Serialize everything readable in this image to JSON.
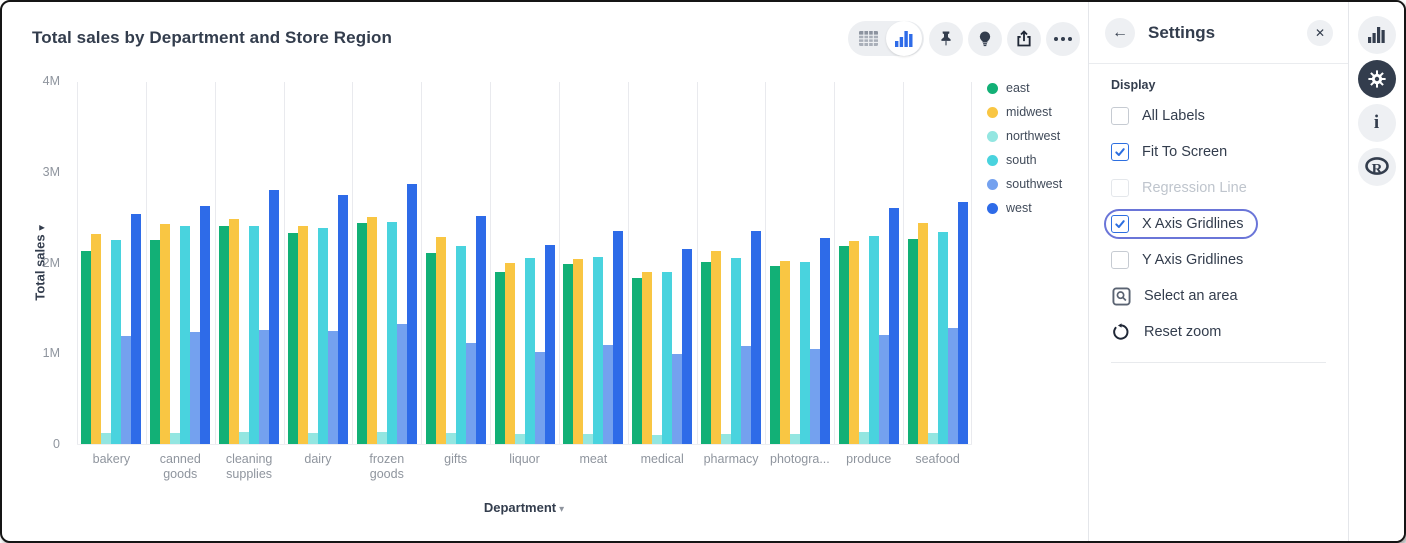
{
  "chart_card": {
    "title": "Total sales by Department and Store Region",
    "toolbar": {
      "view_toggle": {
        "options": [
          "table-view",
          "chart-view"
        ],
        "selected": "chart-view"
      },
      "buttons": [
        "pin",
        "insight-bulb",
        "share",
        "more-options"
      ]
    }
  },
  "chart_data": {
    "type": "bar",
    "title": "Total sales by Department and Store Region",
    "xlabel": "Department",
    "ylabel": "Total sales",
    "value_unit": "millions",
    "ylim": [
      0,
      4
    ],
    "y_ticks": [
      "0",
      "1M",
      "2M",
      "3M",
      "4M"
    ],
    "x_gridlines": true,
    "y_gridlines": false,
    "legend_position": "right",
    "categories": [
      "bakery",
      "canned goods",
      "cleaning supplies",
      "dairy",
      "frozen goods",
      "gifts",
      "liquor",
      "meat",
      "medical",
      "pharmacy",
      "photogra...",
      "produce",
      "seafood"
    ],
    "x_tick_lines": [
      [
        "bakery"
      ],
      [
        "canned",
        "goods"
      ],
      [
        "cleaning",
        "supplies"
      ],
      [
        "dairy"
      ],
      [
        "frozen",
        "goods"
      ],
      [
        "gifts"
      ],
      [
        "liquor"
      ],
      [
        "meat"
      ],
      [
        "medical"
      ],
      [
        "pharmacy"
      ],
      [
        "photogra..."
      ],
      [
        "produce"
      ],
      [
        "seafood"
      ]
    ],
    "series": [
      {
        "name": "east",
        "color": "#12B076",
        "values": [
          2.13,
          2.25,
          2.4,
          2.32,
          2.44,
          2.1,
          1.89,
          1.98,
          1.83,
          2.01,
          1.96,
          2.18,
          2.26
        ]
      },
      {
        "name": "midwest",
        "color": "#F9C643",
        "values": [
          2.31,
          2.42,
          2.48,
          2.4,
          2.5,
          2.28,
          1.99,
          2.04,
          1.9,
          2.13,
          2.02,
          2.24,
          2.43
        ]
      },
      {
        "name": "northwest",
        "color": "#93E6E1",
        "values": [
          0.12,
          0.12,
          0.13,
          0.12,
          0.13,
          0.12,
          0.11,
          0.11,
          0.1,
          0.11,
          0.11,
          0.13,
          0.12
        ]
      },
      {
        "name": "south",
        "color": "#49D3DE",
        "values": [
          2.25,
          2.4,
          2.4,
          2.38,
          2.45,
          2.18,
          2.05,
          2.06,
          1.89,
          2.05,
          2.01,
          2.29,
          2.34
        ]
      },
      {
        "name": "southwest",
        "color": "#74A1EF",
        "values": [
          1.19,
          1.23,
          1.26,
          1.25,
          1.32,
          1.11,
          1.01,
          1.09,
          0.99,
          1.08,
          1.05,
          1.2,
          1.28
        ]
      },
      {
        "name": "west",
        "color": "#2E6BE8",
        "values": [
          2.53,
          2.62,
          2.8,
          2.74,
          2.86,
          2.51,
          2.19,
          2.35,
          2.15,
          2.35,
          2.27,
          2.6,
          2.67
        ]
      }
    ]
  },
  "settings": {
    "title": "Settings",
    "section": "Display",
    "rows": [
      {
        "label": "All Labels",
        "type": "checkbox",
        "checked": false
      },
      {
        "label": "Fit To Screen",
        "type": "checkbox",
        "checked": true
      },
      {
        "label": "Regression Line",
        "type": "checkbox",
        "checked": false,
        "disabled": true
      },
      {
        "label": "X Axis Gridlines",
        "type": "checkbox",
        "checked": true,
        "focused": true
      },
      {
        "label": "Y Axis Gridlines",
        "type": "checkbox",
        "checked": false
      },
      {
        "label": "Select an area",
        "type": "action",
        "icon": "select-area-icon"
      },
      {
        "label": "Reset zoom",
        "type": "action",
        "icon": "reset-zoom-icon"
      }
    ]
  },
  "right_rail": {
    "items": [
      "chart-panel-icon",
      "settings-gear-icon",
      "info-icon",
      "r-logo-icon"
    ],
    "active": "settings-gear-icon"
  },
  "icons": {
    "back_arrow": "←",
    "close": "✕",
    "axis_menu_arrow": "▾",
    "info": "i",
    "r_logo": "R"
  },
  "colors": {
    "accent_blue": "#2E6BE8",
    "checkbox_checked": "#2D6FE0",
    "focus_ring": "#6A75D8",
    "text_dark": "#333D4D",
    "text_muted": "#8F959E",
    "gridline": "#E9EAEE",
    "toolbar_bg": "#EDEFF2"
  }
}
